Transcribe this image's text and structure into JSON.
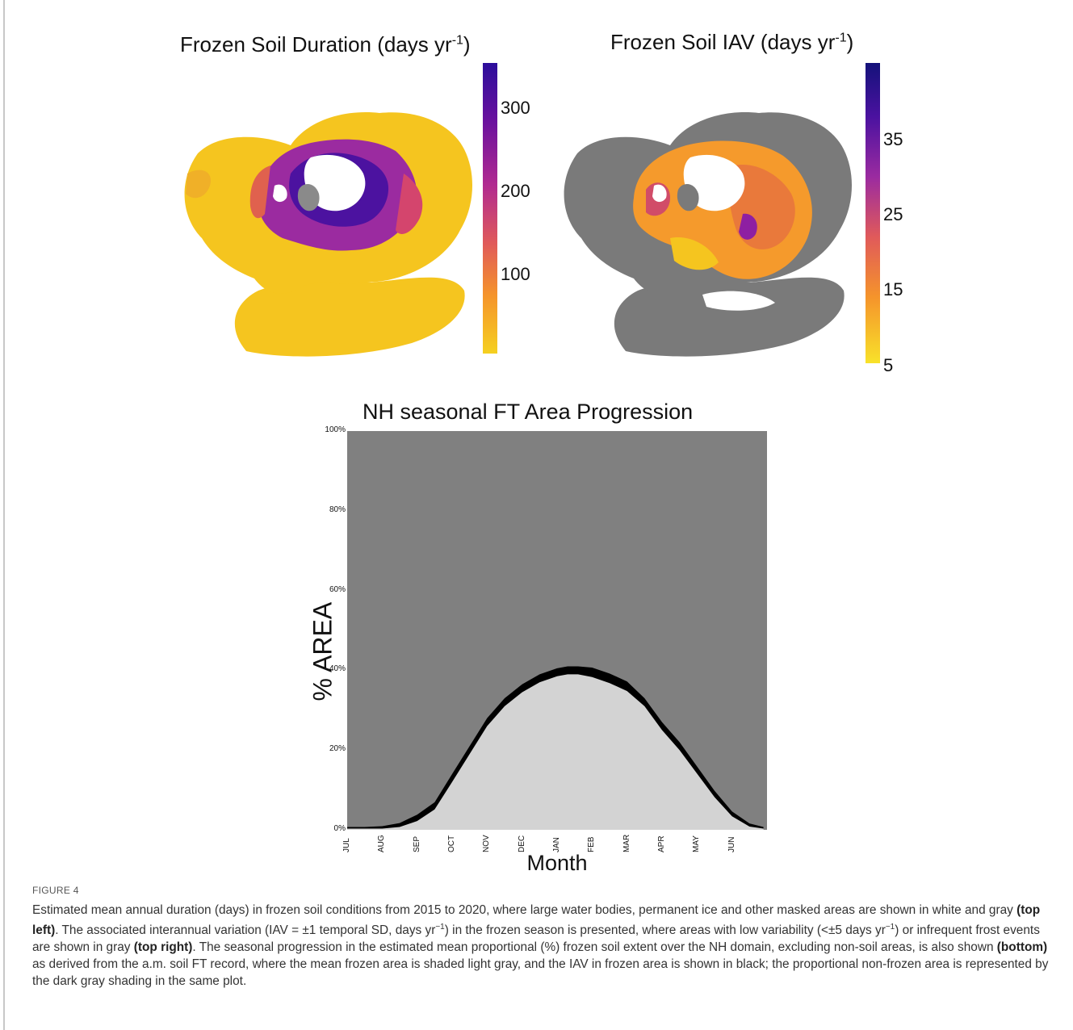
{
  "figure": {
    "label": "FIGURE 4",
    "caption_parts": [
      {
        "t": "Estimated mean annual duration (days) in frozen soil conditions from 2015 to 2020, where large water bodies, permanent ice and other masked areas are shown in white and gray ",
        "b": false
      },
      {
        "t": "(top left)",
        "b": true
      },
      {
        "t": ". The associated interannual variation (IAV = ±1 temporal SD, days yr",
        "b": false
      },
      {
        "t": "−1",
        "sup": true
      },
      {
        "t": ") in the frozen season is presented, where areas with low variability (<±5 days yr",
        "b": false
      },
      {
        "t": "−1",
        "sup": true
      },
      {
        "t": ") or infrequent frost events are shown in gray ",
        "b": false
      },
      {
        "t": "(top right)",
        "b": true
      },
      {
        "t": ". The seasonal progression in the estimated mean proportional (%) frozen soil extent over the NH domain, excluding non-soil areas, is also shown ",
        "b": false
      },
      {
        "t": "(bottom)",
        "b": true
      },
      {
        "t": " as derived from the a.m. soil FT record, where the mean frozen area is shaded light gray, and the IAV in frozen area is shown in black; the proportional non-frozen area is represented by the dark gray shading in the same plot.",
        "b": false
      }
    ]
  },
  "maps": {
    "duration": {
      "title": "Frozen Soil Duration (days yr",
      "title_sup": "-1",
      "title_close": ")",
      "colorbar_ticks": [
        "300",
        "200",
        "100"
      ]
    },
    "iav": {
      "title": "Frozen Soil IAV (days yr",
      "title_sup": "-1",
      "title_close": ")",
      "colorbar_ticks": [
        "35",
        "25",
        "15",
        "5"
      ]
    }
  },
  "colors": {
    "frozen_mean": "#d3d3d3",
    "non_frozen": "#808080",
    "iav_band": "#000000",
    "map_gray": "#777777",
    "plasma_low": "#f5d020",
    "plasma_mid": "#e05a5a",
    "plasma_high": "#2c0e9c"
  },
  "chart_data": {
    "type": "area",
    "title": "NH seasonal FT Area Progression",
    "xlabel": "Month",
    "ylabel": "% AREA",
    "categories": [
      "JUL",
      "AUG",
      "SEP",
      "OCT",
      "NOV",
      "DEC",
      "JAN",
      "FEB",
      "MAR",
      "APR",
      "MAY",
      "JUN"
    ],
    "yticks": [
      "0%",
      "20%",
      "40%",
      "60%",
      "80%",
      "100%"
    ],
    "ylim": [
      0,
      100
    ],
    "series": [
      {
        "x": [
          0,
          0.5,
          1,
          1.5,
          2,
          2.5,
          3,
          3.5,
          4,
          4.5,
          5,
          5.5,
          6,
          6.3,
          6.6,
          7,
          7.5,
          8,
          8.5,
          9,
          9.5,
          10,
          10.5,
          11,
          11.5,
          11.9
        ],
        "values": [
          0.5,
          0.5,
          0.6,
          1.2,
          3,
          6,
          13,
          20,
          27,
          32,
          35.5,
          38,
          39.5,
          40,
          40,
          39.5,
          38,
          36,
          32,
          26,
          21,
          15,
          9,
          4,
          1.2,
          0.5
        ],
        "iav": [
          0.2,
          0.2,
          0.3,
          0.5,
          0.8,
          0.9,
          1.0,
          1.0,
          1.0,
          1.0,
          1.0,
          1.0,
          1.0,
          1.0,
          1.0,
          1.2,
          1.2,
          1.2,
          1.0,
          1.0,
          1.0,
          0.9,
          0.8,
          0.6,
          0.4,
          0.2
        ]
      }
    ]
  }
}
